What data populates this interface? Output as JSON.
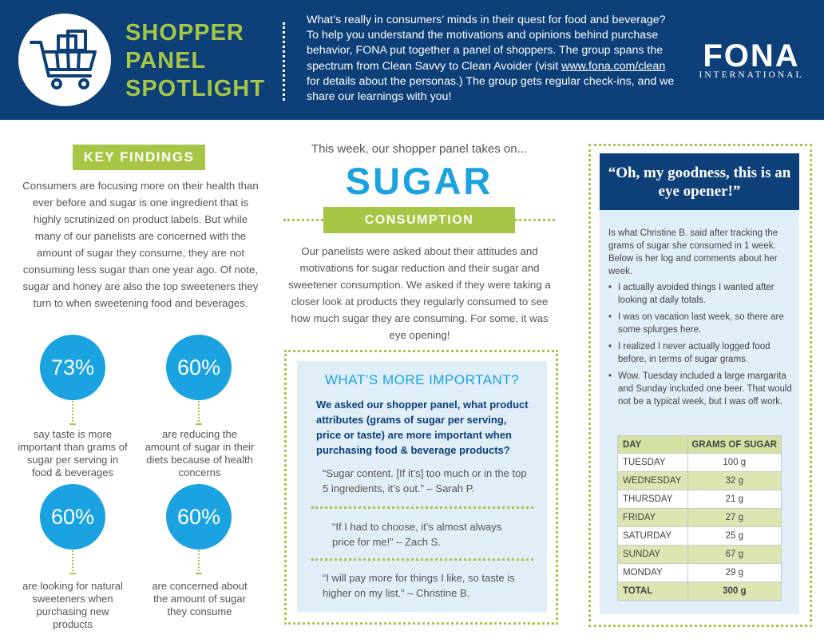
{
  "header": {
    "title_lines": [
      "SHOPPER",
      "PANEL",
      "SPOTLIGHT"
    ],
    "intro_before_link": "What’s really in consumers’ minds in their quest for food and beverage? To help you understand the motivations and opinions behind purchase behavior, FONA put together a panel of shoppers. The group spans the spectrum from Clean Savvy to Clean Avoider (visit ",
    "intro_link": "www.fona.com/clean",
    "intro_after_link": " for details about the personas.) The group gets regular check-ins, and we share our learnings with you!",
    "logo_word": "FONA",
    "logo_sub": "INTERNATIONAL",
    "icon": "shopping-cart-icon"
  },
  "key_findings": {
    "badge": "KEY FINDINGS",
    "text": "Consumers are focusing more on their health than ever before and sugar is one ingredient that is highly scrutinized on product labels. But while many of our panelists are concerned with the amount of sugar they consume, they are not consuming less sugar than one year ago. Of note, sugar and honey are also the top sweeteners they turn to when sweetening food and beverages.",
    "stats": [
      {
        "value": "73%",
        "label": "say taste is more important than grams of sugar per serving in food & beverages"
      },
      {
        "value": "60%",
        "label": "are reducing the amount of sugar in their diets because of health concerns"
      },
      {
        "value": "60%",
        "label": "are looking for natural sweeteners when purchasing new products"
      },
      {
        "value": "60%",
        "label": "are concerned about the amount of sugar they consume"
      }
    ]
  },
  "middle": {
    "week_intro": "This week, our shopper panel takes on...",
    "topic": "SUGAR",
    "badge": "CONSUMPTION",
    "paragraph": "Our panelists were asked about their attitudes and motivations for sugar reduction and their sugar and sweetener consumption. We asked if they were taking a closer look at products they regularly consumed to see how much sugar they are consuming. For some, it was eye opening!",
    "important": {
      "title": "WHAT’S MORE IMPORTANT?",
      "question": "We asked our shopper panel, what product attributes (grams of sugar per serving, price or taste) are more important  when purchasing food & beverage products?",
      "quotes": [
        "“Sugar content. [If it’s] too much or in the top 5 ingredients, it’s out.” – Sarah P.",
        "“If I had to choose, it’s almost always price for me!” – Zach S.",
        "“I will pay more for things I like, so taste is higher on my list.” – Christine B."
      ]
    }
  },
  "right": {
    "title": "“Oh, my goodness, this is an eye opener!”",
    "intro": "Is what Christine B. said after tracking the grams of sugar she consumed in 1 week. Below is her log and comments about her week.",
    "bullets": [
      "I actually avoided things I wanted after looking at daily totals.",
      "I was on vacation last week, so there are some splurges here.",
      "I realized I never actually logged food before, in terms of sugar grams.",
      "Wow. Tuesday included a large margarita and Sunday included one beer. That would not be a typical week, but I was off work."
    ],
    "table": {
      "headers": [
        "DAY",
        "GRAMS OF SUGAR"
      ],
      "rows": [
        [
          "TUESDAY",
          "100 g"
        ],
        [
          "WEDNESDAY",
          "32 g"
        ],
        [
          "THURSDAY",
          "21 g"
        ],
        [
          "FRIDAY",
          "27 g"
        ],
        [
          "SATURDAY",
          "25 g"
        ],
        [
          "SUNDAY",
          "67 g"
        ],
        [
          "MONDAY",
          "29 g"
        ]
      ],
      "total": [
        "TOTAL",
        "300 g"
      ]
    }
  },
  "colors": {
    "navy": "#0d3f78",
    "green": "#a7c645",
    "blue": "#1aa3e0",
    "light_blue": "#e0eef8"
  }
}
